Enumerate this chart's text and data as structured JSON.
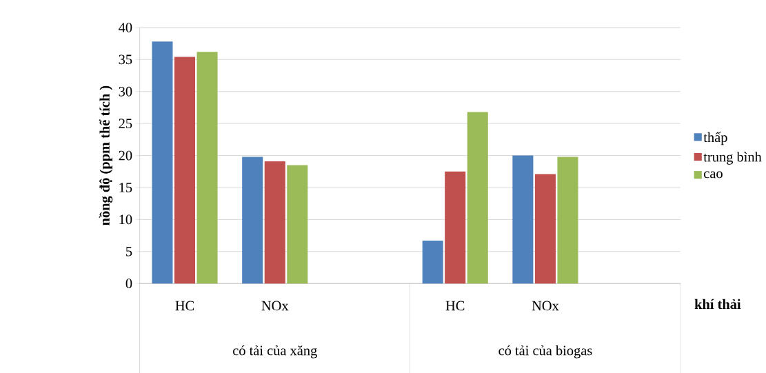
{
  "chart_data": {
    "type": "bar",
    "ylabel": "nồng độ (ppm thể tích )",
    "xlabel": "khí thải",
    "categories": [
      "HC",
      "NOx",
      null,
      "HC",
      "NOx",
      null
    ],
    "series": [
      {
        "name": "thấp",
        "color": "#4f81bd",
        "values": [
          37.8,
          19.8,
          null,
          6.7,
          20.0,
          null
        ]
      },
      {
        "name": "trung bình",
        "color": "#c0504d",
        "values": [
          35.4,
          19.1,
          null,
          17.5,
          17.1,
          null
        ]
      },
      {
        "name": "cao",
        "color": "#9bbb59",
        "values": [
          36.2,
          18.5,
          null,
          26.8,
          19.8,
          null
        ]
      }
    ],
    "ylim": [
      0,
      40
    ],
    "yticks": [
      0,
      5,
      10,
      15,
      20,
      25,
      30,
      35,
      40
    ],
    "grid": "y",
    "legend": "right",
    "annotations": [
      "có tải của xăng",
      "có tải của biogas"
    ]
  }
}
